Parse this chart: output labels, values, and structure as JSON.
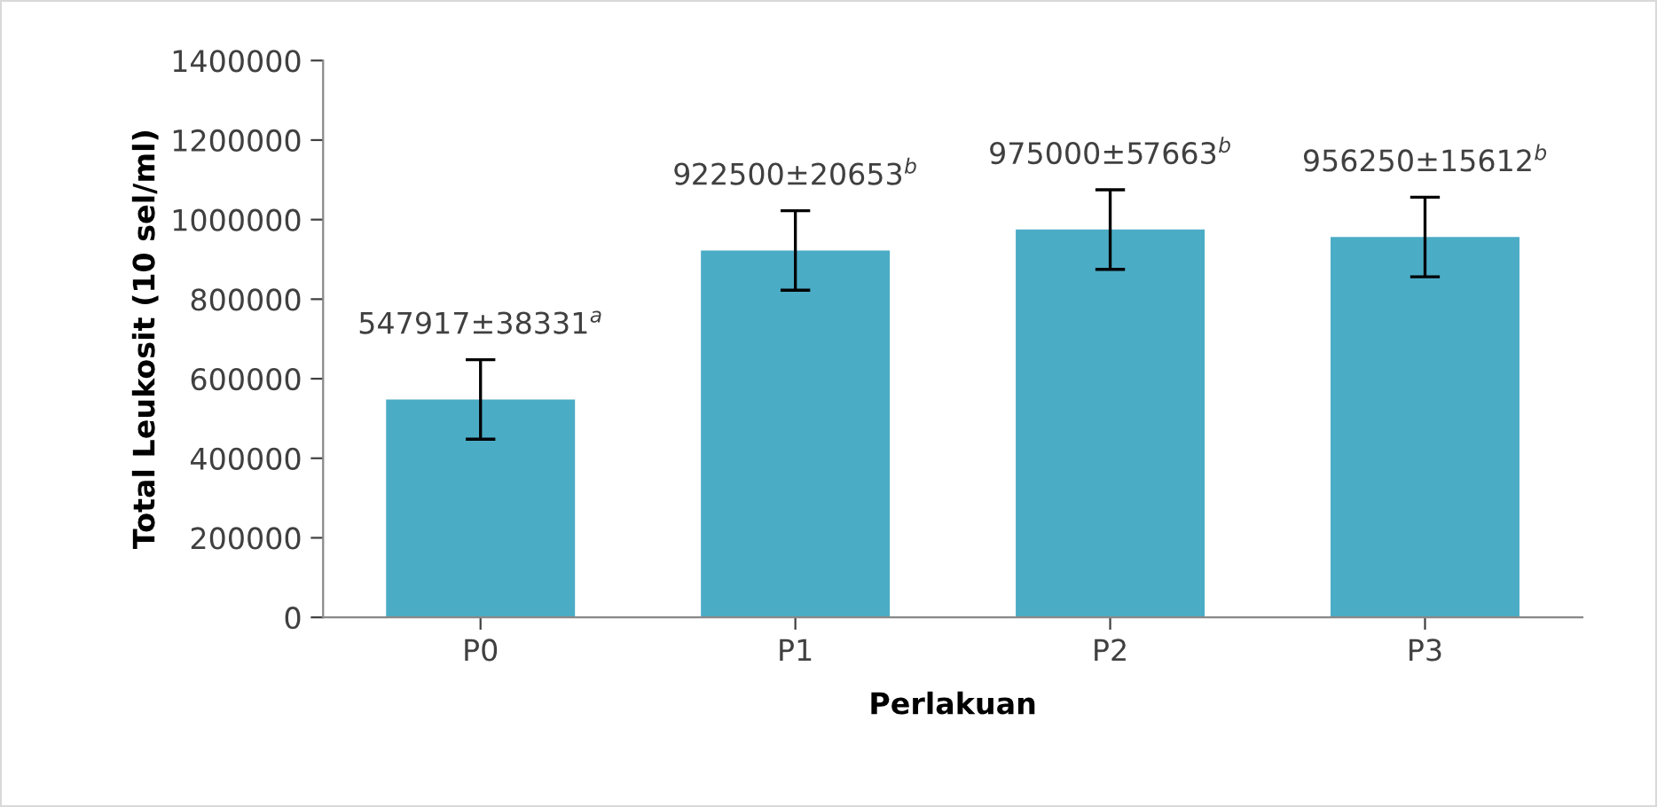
{
  "chart_data": {
    "type": "bar",
    "xlabel": "Perlakuan",
    "ylabel": "Total Leukosit (10 sel/ml)",
    "categories": [
      "P0",
      "P1",
      "P2",
      "P3"
    ],
    "values": [
      547917,
      922500,
      975000,
      956250
    ],
    "errors": [
      100000,
      100000,
      100000,
      100000
    ],
    "value_labels": [
      "547917±38331$^{a}$",
      "922500±20653$^{b}$",
      "975000±57663$^{b}$",
      "956250±15612$^{b}$"
    ],
    "color": "#4bacc6",
    "ylim": [
      0,
      1400000
    ],
    "yticks": [
      0,
      200000,
      400000,
      600000,
      800000,
      1000000,
      1200000,
      1400000
    ],
    "grid": false
  }
}
